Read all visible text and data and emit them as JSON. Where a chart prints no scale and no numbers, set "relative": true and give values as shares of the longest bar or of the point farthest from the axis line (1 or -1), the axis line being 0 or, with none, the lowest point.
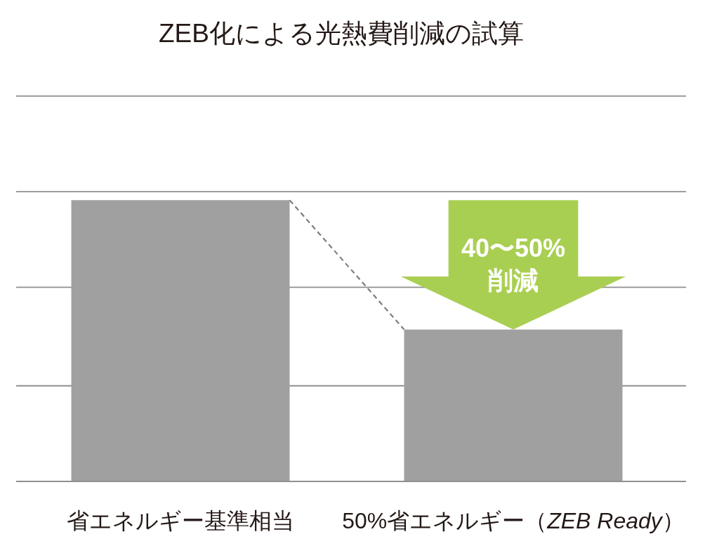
{
  "chart_data": {
    "type": "bar",
    "title": "ZEB化による光熱費削減の試算",
    "categories": [
      "省エネルギー基準相当",
      "50%省エネルギー（ZEB Ready）"
    ],
    "values": [
      1,
      0.54
    ],
    "color": "#a0a0a0",
    "relative": true,
    "ref_lines": [
      {
        "axis": "y",
        "value": 0.34,
        "color": "#8f8f8f"
      },
      {
        "axis": "y",
        "value": 0.69,
        "color": "#8f8f8f"
      },
      {
        "axis": "y",
        "value": 1.03,
        "color": "#8f8f8f"
      },
      {
        "axis": "y",
        "value": 1.37,
        "color": "#8f8f8f"
      }
    ],
    "annotations": [
      "40〜50%\n削減"
    ]
  }
}
